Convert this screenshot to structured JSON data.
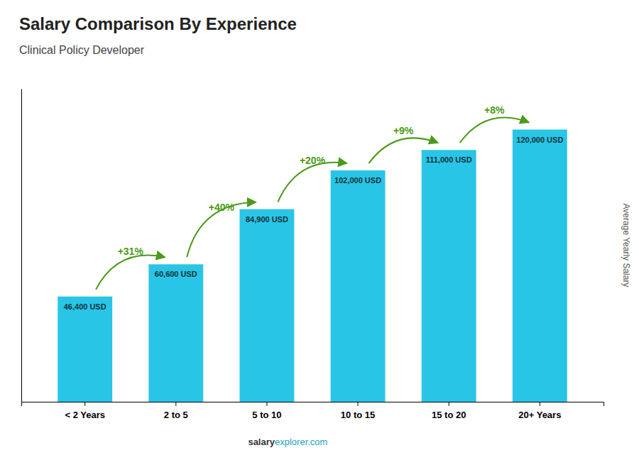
{
  "chart_data": {
    "type": "bar",
    "title": "Salary Comparison By Experience",
    "subtitle": "Clinical Policy Developer",
    "ylabel": "Average Yearly Salary",
    "categories": [
      "< 2 Years",
      "2 to 5",
      "5 to 10",
      "10 to 15",
      "15 to 20",
      "20+ Years"
    ],
    "values": [
      46400,
      60600,
      84900,
      102000,
      111000,
      120000
    ],
    "value_labels": [
      "46,400 USD",
      "60,600 USD",
      "84,900 USD",
      "102,000 USD",
      "111,000 USD",
      "120,000 USD"
    ],
    "data_labels": true,
    "annotations": [
      "+31%",
      "+40%",
      "+20%",
      "+9%",
      "+8%"
    ],
    "footer": [
      "salary",
      "explorer.com"
    ],
    "color": "#29c5e6",
    "ylim": [
      0,
      138000
    ],
    "tick_labels": "x",
    "grid": false
  }
}
